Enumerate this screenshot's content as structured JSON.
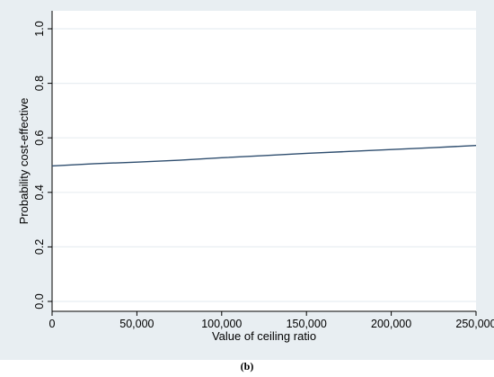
{
  "chart_data": {
    "type": "line",
    "title": "",
    "xlabel": "Value of ceiling ratio",
    "ylabel": "Probability cost-effective",
    "xlim": [
      0,
      250000
    ],
    "ylim": [
      0,
      1
    ],
    "x_ticks": [
      0,
      50000,
      100000,
      150000,
      200000,
      250000
    ],
    "x_tick_labels": [
      "0",
      "50,000",
      "100,000",
      "150,000",
      "200,000",
      "250,000"
    ],
    "y_ticks": [
      0,
      0.2,
      0.4,
      0.6,
      0.8,
      1.0
    ],
    "y_tick_labels": [
      "0.0",
      "0.2",
      "0.4",
      "0.6",
      "0.8",
      "1.0"
    ],
    "grid": true,
    "legend": "none",
    "series": [
      {
        "color": "#2f4e6f",
        "x": [
          0,
          25000,
          50000,
          75000,
          100000,
          125000,
          150000,
          175000,
          200000,
          225000,
          250000
        ],
        "y": [
          0.497,
          0.505,
          0.511,
          0.518,
          0.527,
          0.535,
          0.543,
          0.55,
          0.557,
          0.564,
          0.572
        ]
      }
    ]
  },
  "colors": {
    "outer_background": "#e8eef2",
    "plot_background": "#ffffff",
    "gridline": "#e8eef2",
    "axis": "#000000"
  },
  "caption": "(b)"
}
